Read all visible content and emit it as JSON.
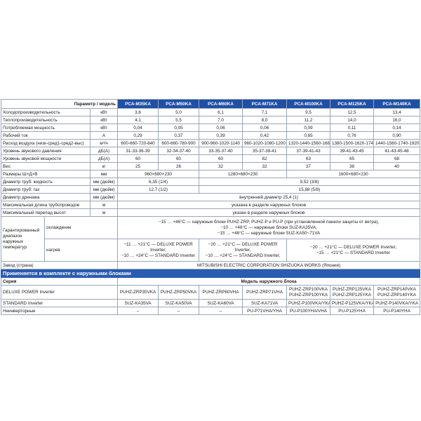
{
  "header": {
    "param_label": "Параметр / модель",
    "models": [
      "PCA-M35KA",
      "PCA-M50KA",
      "PCA-M60KA",
      "PCA-M71KA",
      "PCA-M100KA",
      "PCA-M125KA",
      "PCA-M140KA"
    ]
  },
  "rows": [
    {
      "label": "Холодопроизводительность",
      "unit": "кВт",
      "values": [
        "3,6",
        "5,0",
        "6,1",
        "7,1",
        "9,5",
        "12,5",
        "13,4"
      ]
    },
    {
      "label": "Теплопроизводительность",
      "unit": "кВт",
      "values": [
        "4,1",
        "5,5",
        "7,0",
        "8,0",
        "11,2",
        "14,0",
        "16,0"
      ]
    },
    {
      "label": "Потребляемая мощность",
      "unit": "кВт",
      "values": [
        "0,04",
        "0,05",
        "0,06",
        "0,06",
        "0,09",
        "0,11",
        "0,14"
      ]
    },
    {
      "label": "Рабочий ток",
      "unit": "А",
      "values": [
        "0,29",
        "0,37",
        "0,39",
        "0,42",
        "0,65",
        "0,76",
        "0,90"
      ]
    },
    {
      "label": "Расход воздуха (низк-сред1-сред2-выс)",
      "unit": "м³/ч",
      "values": [
        "600-660-720-840",
        "600-660-780-900",
        "900-960-1020-1140",
        "960-1020-1080-1200",
        "1320-1440-1560-1680",
        "1380-1500-1620-1740",
        "1440-1560-1740-1920"
      ]
    },
    {
      "label": "Уровень звукового давления",
      "unit": "дБ(А)",
      "values": [
        "31-33-36-39",
        "32-34-37-40",
        "33-35-37-40",
        "35-37-39-41",
        "37-39-41-43",
        "39-41-43-45",
        "41-43-45-48"
      ]
    },
    {
      "label": "Уровень звуковой мощности",
      "unit": "дБ(А)",
      "values": [
        "60",
        "60",
        "60",
        "62",
        "63",
        "65",
        "68"
      ]
    },
    {
      "label": "Вес",
      "unit": "кг",
      "values": [
        "25",
        "26",
        "32",
        "32",
        "37",
        "38",
        "40"
      ]
    }
  ],
  "dimensions": {
    "label": "Размеры Ш×Д×В",
    "unit": "мм",
    "values": [
      "960×680×230",
      "1280×680×230",
      "1600×680×230"
    ]
  },
  "liquid": {
    "label": "Диаметр труб: жидкость",
    "unit": "мм (дюйм)",
    "values": [
      "6,35 (1/4)",
      "9,52 (3/8)"
    ]
  },
  "gas": {
    "label": "Диаметр труб: газ",
    "unit": "мм (дюйм)",
    "values": [
      "12,7 (1/2)",
      "15,88 (5/8)"
    ]
  },
  "drain": {
    "label": "Диаметр дренажа",
    "unit": "мм (дюйм)",
    "value": "внутренний диаметр 25,4 (1)"
  },
  "pipe_len": {
    "label": "Максимальная длина трубопроводов",
    "unit": "м",
    "value": "указана в разделе наружных блоков"
  },
  "height_diff": {
    "label": "Максимальный перепад высот",
    "unit": "м",
    "value": "указан в разделе наружных блоков"
  },
  "temp": {
    "label": "Гарантированный диапазон наружных температур",
    "cooling_label": "охлаждение",
    "cooling": [
      "−15 … +46°C — наружные блоки PUHZ-ZRP, PUHZ-P и PU-P (при установленной панели защиты от ветра),",
      "−10 … +46°C — наружные блоки SUZ-KA35VA,",
      "−15 … +46°C — наружные блоки SUZ-KA50~71VA"
    ],
    "heating_label": "нагрев",
    "heating": [
      [
        "−11 … +21°C — DELUXE POWER Inverter,",
        "−10 … +24°C — STANDARD Inverter"
      ],
      [
        "−20 … +21°C — DELUXE POWER Inverter,",
        "−10 … +24°C — STANDARD Inverter,"
      ],
      [
        "−20 … +21°C — DELUXE POWER Inverter,",
        "−15 … +21°C — STANDARD Inverter"
      ]
    ]
  },
  "factory": {
    "label": "Завод (страна)",
    "value": "MITSUBISHI ELECTRIC CORPORATION SHIZUOKA WORKS (Япония)"
  },
  "outdoor": {
    "title": "Применяется в комплекте с наружными блоками",
    "series_label": "Серия",
    "model_label": "Модель наружного блока",
    "rows": [
      {
        "label": "DELUXE POWER Inverter",
        "values": [
          "PUHZ-ZRP35VKA",
          "PUHZ-ZRP50VKA",
          "PUHZ-ZRP60VHA",
          "PUHZ-ZRP71VHA",
          [
            "PUHZ-ZRP100VKA",
            "PUHZ-ZRP100YKA"
          ],
          [
            "PUHZ-ZRP125VKA",
            "PUHZ-ZRP125YKA"
          ],
          [
            "PUHZ-ZRP140VKA",
            "PUHZ-ZRP140YKA"
          ]
        ]
      },
      {
        "label": "STANDARD Inverter",
        "values": [
          "SUZ-KA35VA",
          "SUZ-KA50VA",
          "SUZ-KA60VA",
          "SUZ-KA71VA",
          "PUHZ-P100VKA/YKA",
          "PUHZ-P125VKA/YKA",
          "PUHZ-P140VKA/YKA"
        ]
      },
      {
        "label": "Неинверторные",
        "values": [
          "–",
          "–",
          "–",
          "PU-P71VHA/YHA",
          "PU-P100YHA/VHA",
          "PU-P125YHA",
          "PU-P140YHA"
        ]
      }
    ]
  },
  "colors": {
    "header_blue": "#1f50a5",
    "band_blue": "#2a5cb0"
  }
}
